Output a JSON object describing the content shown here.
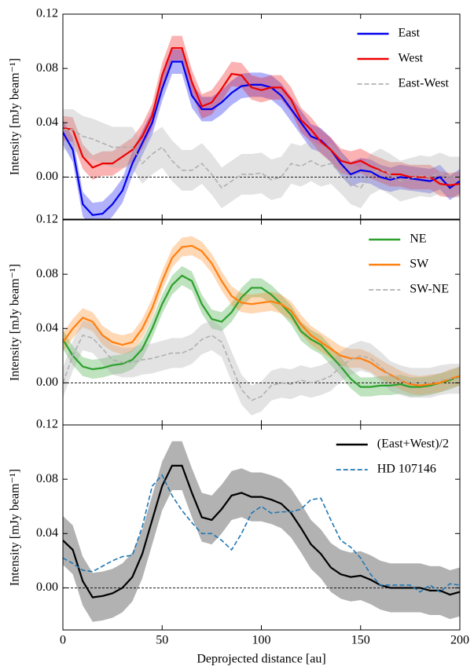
{
  "chart_data": [
    {
      "type": "line",
      "ylabel": "Intensity [mJy beam⁻¹]",
      "xtick_labels": false,
      "legend": "upper right",
      "x": [
        0,
        5,
        10,
        15,
        20,
        25,
        30,
        35,
        40,
        45,
        50,
        55,
        60,
        65,
        70,
        75,
        80,
        85,
        90,
        95,
        100,
        105,
        110,
        115,
        120,
        125,
        130,
        135,
        140,
        145,
        150,
        155,
        160,
        165,
        170,
        175,
        180,
        185,
        190,
        195,
        200
      ],
      "xlim": [
        0,
        200
      ],
      "xticks": [
        0,
        50,
        100,
        150,
        200
      ],
      "ylim": [
        -0.031,
        0.12
      ],
      "yticks": [
        {
          "value": 0,
          "label": "0.00"
        },
        {
          "value": 0.04,
          "label": "0.04"
        },
        {
          "value": 0.08,
          "label": "0.08"
        },
        {
          "value": 0.12,
          "label": "0.12"
        }
      ],
      "series": [
        {
          "name": "East",
          "color": "#0000ee",
          "linestyle": "solid",
          "error": 0.009,
          "values": [
            0.033,
            0.02,
            -0.02,
            -0.028,
            -0.027,
            -0.02,
            -0.01,
            0.01,
            0.025,
            0.04,
            0.065,
            0.085,
            0.085,
            0.06,
            0.05,
            0.05,
            0.055,
            0.062,
            0.067,
            0.068,
            0.068,
            0.066,
            0.06,
            0.05,
            0.04,
            0.03,
            0.027,
            0.02,
            0.01,
            0.002,
            0.005,
            0.004,
            0.0,
            -0.002,
            0.0,
            -0.001,
            -0.002,
            -0.003,
            0.0,
            -0.008,
            -0.003
          ]
        },
        {
          "name": "West",
          "color": "#ee0000",
          "linestyle": "solid",
          "error": 0.009,
          "values": [
            0.036,
            0.035,
            0.015,
            0.007,
            0.01,
            0.01,
            0.015,
            0.02,
            0.03,
            0.045,
            0.075,
            0.095,
            0.095,
            0.07,
            0.052,
            0.055,
            0.065,
            0.076,
            0.075,
            0.066,
            0.064,
            0.066,
            0.066,
            0.057,
            0.042,
            0.035,
            0.026,
            0.02,
            0.012,
            0.01,
            0.012,
            0.008,
            0.005,
            0.002,
            0.002,
            0.0,
            0.0,
            0.0,
            -0.005,
            -0.006,
            -0.005
          ]
        },
        {
          "name": "East-West",
          "color": "#b0b0b0",
          "linestyle": "dashed",
          "error": 0.015,
          "values": [
            0.035,
            0.035,
            0.03,
            0.028,
            0.025,
            0.022,
            0.022,
            0.022,
            0.01,
            0.017,
            0.022,
            0.012,
            0.005,
            0.005,
            0.01,
            0.002,
            -0.008,
            -0.003,
            0.002,
            0.002,
            0.003,
            -0.002,
            0.0,
            0.01,
            0.008,
            0.012,
            0.008,
            0.01,
            0.003,
            -0.005,
            -0.008,
            0.002,
            0.006,
            0.002,
            -0.003,
            -0.001,
            0.001,
            0.0,
            0.003,
            0.0,
            0.0
          ]
        }
      ]
    },
    {
      "type": "line",
      "ylabel": "Intensity [mJy beam⁻¹]",
      "xtick_labels": false,
      "legend": "upper right",
      "x": [
        0,
        5,
        10,
        15,
        20,
        25,
        30,
        35,
        40,
        45,
        50,
        55,
        60,
        65,
        70,
        75,
        80,
        85,
        90,
        95,
        100,
        105,
        110,
        115,
        120,
        125,
        130,
        135,
        140,
        145,
        150,
        155,
        160,
        165,
        170,
        175,
        180,
        185,
        190,
        195,
        200
      ],
      "xlim": [
        0,
        200
      ],
      "xticks": [
        0,
        50,
        100,
        150,
        200
      ],
      "ylim": [
        -0.031,
        0.12
      ],
      "yticks": [
        {
          "value": 0,
          "label": "0.00"
        },
        {
          "value": 0.04,
          "label": "0.04"
        },
        {
          "value": 0.08,
          "label": "0.08"
        },
        {
          "value": 0.12,
          "label": "0.12"
        }
      ],
      "series": [
        {
          "name": "NE",
          "color": "#2ca02c",
          "linestyle": "solid",
          "error": 0.007,
          "values": [
            0.032,
            0.02,
            0.012,
            0.01,
            0.011,
            0.013,
            0.014,
            0.017,
            0.025,
            0.04,
            0.058,
            0.072,
            0.079,
            0.075,
            0.058,
            0.047,
            0.045,
            0.052,
            0.063,
            0.07,
            0.07,
            0.065,
            0.058,
            0.05,
            0.038,
            0.032,
            0.028,
            0.02,
            0.012,
            0.003,
            -0.003,
            -0.003,
            -0.002,
            -0.002,
            -0.001,
            -0.003,
            -0.003,
            -0.002,
            0.0,
            0.002,
            0.005
          ]
        },
        {
          "name": "SW",
          "color": "#ff7f0e",
          "linestyle": "solid",
          "error": 0.007,
          "values": [
            0.03,
            0.04,
            0.048,
            0.045,
            0.035,
            0.03,
            0.028,
            0.03,
            0.04,
            0.055,
            0.075,
            0.092,
            0.1,
            0.101,
            0.097,
            0.088,
            0.075,
            0.064,
            0.059,
            0.058,
            0.059,
            0.06,
            0.058,
            0.053,
            0.043,
            0.035,
            0.03,
            0.025,
            0.02,
            0.018,
            0.018,
            0.015,
            0.01,
            0.006,
            0.002,
            -0.001,
            -0.002,
            -0.001,
            0.0,
            0.003,
            0.005
          ]
        },
        {
          "name": "SW-NE",
          "color": "#b0b0b0",
          "linestyle": "dashed",
          "error": 0.011,
          "values": [
            0.0,
            0.02,
            0.035,
            0.033,
            0.025,
            0.017,
            0.015,
            0.015,
            0.017,
            0.018,
            0.02,
            0.022,
            0.022,
            0.025,
            0.032,
            0.035,
            0.03,
            0.012,
            -0.005,
            -0.013,
            -0.01,
            -0.002,
            0.0,
            -0.001,
            0.002,
            0.0,
            0.002,
            0.005,
            0.012,
            0.017,
            0.02,
            0.018,
            0.012,
            0.005,
            0.002,
            0.0,
            0.0,
            0.0,
            0.002,
            0.003,
            0.003
          ]
        }
      ]
    },
    {
      "type": "line",
      "ylabel": "Intensity [mJy beam⁻¹]",
      "xlabel": "Deprojected distance [au]",
      "xtick_labels": true,
      "legend": "upper right",
      "x": [
        0,
        5,
        10,
        15,
        20,
        25,
        30,
        35,
        40,
        45,
        50,
        55,
        60,
        65,
        70,
        75,
        80,
        85,
        90,
        95,
        100,
        105,
        110,
        115,
        120,
        125,
        130,
        135,
        140,
        145,
        150,
        155,
        160,
        165,
        170,
        175,
        180,
        185,
        190,
        195,
        200
      ],
      "xlim": [
        0,
        200
      ],
      "xticks": [
        0,
        50,
        100,
        150,
        200
      ],
      "ylim": [
        -0.031,
        0.12
      ],
      "yticks": [
        {
          "value": 0,
          "label": "0.00"
        },
        {
          "value": 0.04,
          "label": "0.04"
        },
        {
          "value": 0.08,
          "label": "0.08"
        },
        {
          "value": 0.12,
          "label": "0.12"
        }
      ],
      "series": [
        {
          "name": "(East+West)/2",
          "color": "#000000",
          "linestyle": "solid",
          "error": 0.018,
          "values": [
            0.035,
            0.028,
            0.005,
            -0.007,
            -0.006,
            -0.004,
            0.0,
            0.008,
            0.025,
            0.05,
            0.075,
            0.09,
            0.09,
            0.07,
            0.052,
            0.05,
            0.058,
            0.068,
            0.07,
            0.067,
            0.067,
            0.065,
            0.062,
            0.055,
            0.044,
            0.032,
            0.025,
            0.015,
            0.01,
            0.008,
            0.009,
            0.006,
            0.002,
            0.0,
            0.0,
            0.0,
            0.0,
            -0.002,
            -0.002,
            -0.005,
            -0.003
          ]
        },
        {
          "name": "HD 107146",
          "color": "#1f77b4",
          "linestyle": "dashed",
          "values": [
            0.022,
            0.018,
            0.013,
            0.012,
            0.016,
            0.02,
            0.023,
            0.024,
            0.045,
            0.075,
            0.083,
            0.068,
            0.057,
            0.048,
            0.04,
            0.04,
            0.035,
            0.028,
            0.04,
            0.055,
            0.06,
            0.055,
            0.056,
            0.056,
            0.058,
            0.065,
            0.066,
            0.05,
            0.035,
            0.03,
            0.022,
            0.01,
            0.002,
            0.002,
            0.002,
            0.002,
            -0.003,
            0.002,
            -0.003,
            0.003,
            0.002
          ]
        }
      ]
    }
  ]
}
